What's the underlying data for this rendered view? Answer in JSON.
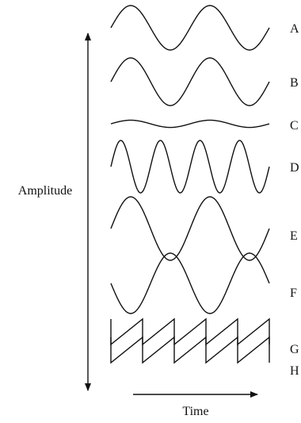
{
  "figure": {
    "y_axis_label": "Amplitude",
    "x_axis_label": "Time",
    "waves": [
      {
        "label": "A",
        "shape": "sine",
        "cycles": 2.0,
        "amplitude": 1.0,
        "phase": 0.0
      },
      {
        "label": "B",
        "shape": "sine",
        "cycles": 2.0,
        "amplitude": 1.0,
        "phase": 0.0
      },
      {
        "label": "C",
        "shape": "sine",
        "cycles": 2.0,
        "amplitude": 0.35,
        "phase": 0.0
      },
      {
        "label": "D",
        "shape": "sine",
        "cycles": 4.0,
        "amplitude": 1.0,
        "phase": 0.0
      },
      {
        "label": "E",
        "shape": "sine",
        "cycles": 2.0,
        "amplitude": 1.0,
        "phase": 0.0
      },
      {
        "label": "F",
        "shape": "sine",
        "cycles": 2.0,
        "amplitude": 1.0,
        "phase": 0.5
      },
      {
        "label": "G",
        "shape": "sawtooth",
        "cycles": 5.0,
        "amplitude": 1.0,
        "phase": 0.0
      },
      {
        "label": "H",
        "shape": "sawtooth",
        "cycles": 5.0,
        "amplitude": 1.0,
        "phase": 0.0
      }
    ],
    "stroke_color": "#111111"
  }
}
